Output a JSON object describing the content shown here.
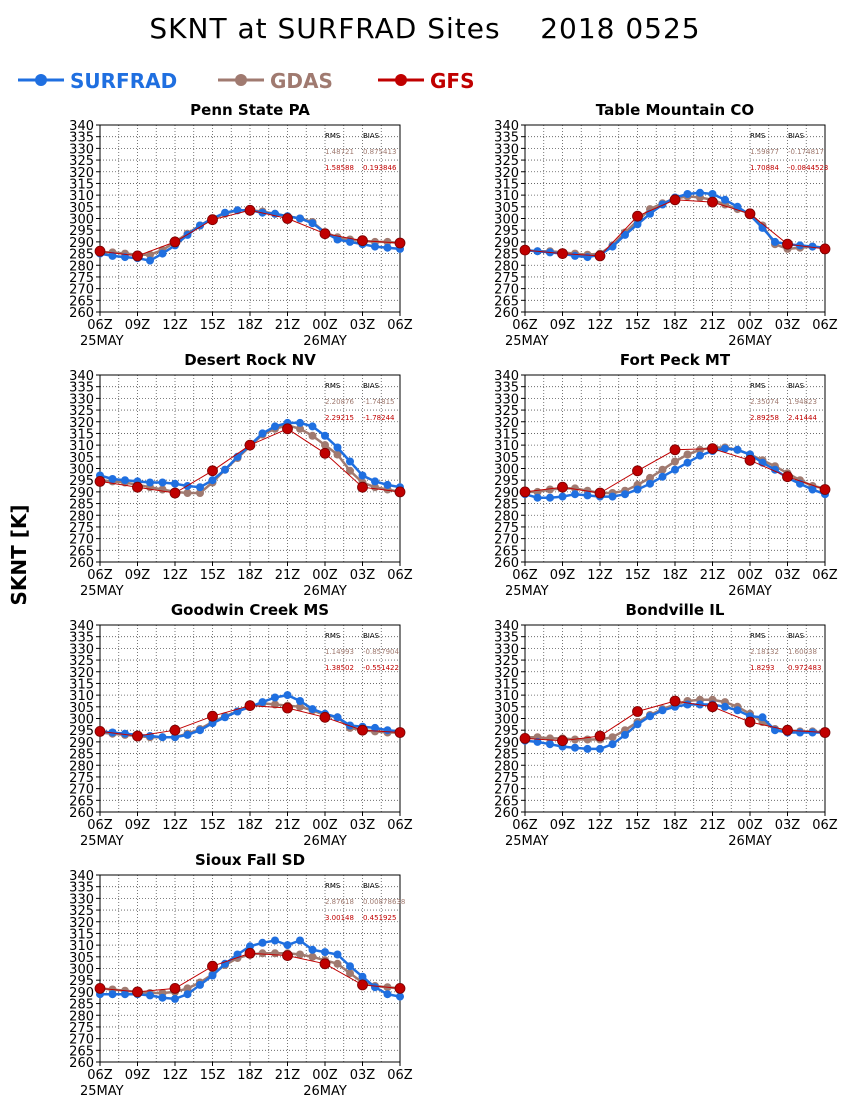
{
  "title": {
    "variable": "SKNT at SURFRAD Sites",
    "date": "2018 0525"
  },
  "colors": {
    "SURFRAD": "#1f6fe0",
    "GDAS": "#a07a70",
    "GFS": "#c00000"
  },
  "legend": [
    {
      "name": "SURFRAD",
      "color": "#1f6fe0"
    },
    {
      "name": "GDAS",
      "color": "#a07a70"
    },
    {
      "name": "GFS",
      "color": "#c00000"
    }
  ],
  "ylabel": "SKNT [K]",
  "stats_header": {
    "rms": "RMS",
    "bias": "BIAS"
  },
  "axes": {
    "ylim": [
      260,
      340
    ],
    "yticks": [
      260,
      265,
      270,
      275,
      280,
      285,
      290,
      295,
      300,
      305,
      310,
      315,
      320,
      325,
      330,
      335,
      340
    ],
    "xticks": [
      "06Z",
      "09Z",
      "12Z",
      "15Z",
      "18Z",
      "21Z",
      "00Z",
      "03Z",
      "06Z"
    ],
    "date_labels": [
      "25MAY",
      "26MAY"
    ],
    "grid": true
  },
  "chart_data": [
    {
      "type": "line",
      "title": "Penn State PA",
      "stats": {
        "GDAS": {
          "rms": "1.48721",
          "bias": "0.875413"
        },
        "GFS": {
          "rms": "1.58588",
          "bias": "0.193846"
        }
      },
      "series": [
        {
          "name": "SURFRAD",
          "values": [
            285,
            284,
            283.5,
            283,
            282,
            285,
            288.5,
            293,
            297,
            300,
            302.5,
            303.5,
            303.5,
            302.5,
            302,
            301,
            300,
            298,
            294,
            291,
            290,
            289,
            288,
            287.5,
            287
          ]
        },
        {
          "name": "GDAS",
          "values": [
            285.5,
            285.5,
            285,
            284.5,
            284.5,
            286.5,
            290,
            293.5,
            297,
            300,
            302,
            303.5,
            303.5,
            303,
            302,
            301,
            300,
            298.5,
            294,
            292,
            291,
            290.5,
            290,
            290,
            289.5
          ]
        },
        {
          "name": "GFS",
          "values": [
            286,
            null,
            null,
            284,
            null,
            null,
            290,
            null,
            null,
            299.5,
            null,
            null,
            303.5,
            null,
            null,
            300,
            null,
            null,
            293.5,
            null,
            null,
            290.5,
            null,
            null,
            289.5
          ]
        }
      ]
    },
    {
      "type": "line",
      "title": "Table Mountain CO",
      "stats": {
        "GDAS": {
          "rms": "1.59877",
          "bias": "-0.174817"
        },
        "GFS": {
          "rms": "1.70884",
          "bias": "-0.0844523"
        }
      },
      "series": [
        {
          "name": "SURFRAD",
          "values": [
            286.5,
            286,
            285.5,
            285,
            284,
            283.5,
            284.5,
            288,
            293,
            297.5,
            302,
            306,
            309,
            310.5,
            311,
            310.5,
            308,
            305,
            301.5,
            296,
            290,
            289,
            288.5,
            288,
            287.5
          ]
        },
        {
          "name": "GDAS",
          "values": [
            286.5,
            286,
            286,
            285.5,
            285,
            284.5,
            285,
            288.5,
            294,
            299,
            304,
            306.5,
            308.5,
            309.5,
            309,
            308,
            306,
            304,
            302,
            297,
            289,
            287,
            287.5,
            288,
            287.5
          ]
        },
        {
          "name": "GFS",
          "values": [
            286.5,
            null,
            null,
            285,
            null,
            null,
            284,
            null,
            null,
            301,
            null,
            null,
            308,
            null,
            null,
            307,
            null,
            null,
            302,
            null,
            null,
            289,
            null,
            null,
            287
          ]
        }
      ]
    },
    {
      "type": "line",
      "title": "Desert Rock NV",
      "stats": {
        "GDAS": {
          "rms": "2.20876",
          "bias": "-1.74815"
        },
        "GFS": {
          "rms": "2.29215",
          "bias": "-1.78244"
        }
      },
      "series": [
        {
          "name": "SURFRAD",
          "values": [
            297,
            295.5,
            295,
            294.5,
            294,
            294,
            293.5,
            292.5,
            292,
            295,
            299.5,
            305,
            310,
            315,
            318,
            319.5,
            319.5,
            318,
            314,
            309,
            303,
            297,
            294.5,
            293,
            292
          ]
        },
        {
          "name": "GDAS",
          "values": [
            295,
            294.5,
            294,
            293,
            292,
            291,
            290,
            289.5,
            289.5,
            294,
            299.5,
            304.5,
            309.5,
            314.5,
            317,
            318.5,
            317,
            314,
            310,
            306,
            299,
            294,
            292,
            291,
            290
          ]
        },
        {
          "name": "GFS",
          "values": [
            294.5,
            null,
            null,
            292,
            null,
            null,
            289.5,
            null,
            null,
            299,
            null,
            null,
            310,
            null,
            null,
            317,
            null,
            null,
            306.5,
            null,
            null,
            292,
            null,
            null,
            290
          ]
        }
      ]
    },
    {
      "type": "line",
      "title": "Fort Peck MT",
      "stats": {
        "GDAS": {
          "rms": "2.35074",
          "bias": "1.94823"
        },
        "GFS": {
          "rms": "2.89258",
          "bias": "2.41444"
        }
      },
      "series": [
        {
          "name": "SURFRAD",
          "values": [
            289,
            287.5,
            287.5,
            288,
            289,
            288.5,
            288,
            288,
            289,
            291,
            293.5,
            296.5,
            299.5,
            302.5,
            305.5,
            307.5,
            308.5,
            308,
            306,
            302.5,
            299.5,
            296,
            293.5,
            291,
            289
          ]
        },
        {
          "name": "GDAS",
          "values": [
            290,
            290,
            291,
            291.5,
            291.5,
            290.5,
            289.5,
            289.5,
            290.5,
            293,
            296,
            299.5,
            303,
            306,
            308,
            309,
            309,
            308,
            306,
            303.5,
            301,
            298,
            295,
            292.5,
            291.5
          ]
        },
        {
          "name": "GFS",
          "values": [
            290,
            null,
            null,
            292,
            null,
            null,
            289.5,
            null,
            null,
            299,
            null,
            null,
            308,
            null,
            null,
            308.5,
            null,
            null,
            303.5,
            null,
            null,
            296.5,
            null,
            null,
            291
          ]
        }
      ]
    },
    {
      "type": "line",
      "title": "Goodwin Creek MS",
      "stats": {
        "GDAS": {
          "rms": "1.14993",
          "bias": "-0.857904"
        },
        "GFS": {
          "rms": "1.38502",
          "bias": "-0.551422"
        }
      },
      "series": [
        {
          "name": "SURFRAD",
          "values": [
            294.5,
            294,
            293.5,
            293,
            292.5,
            292,
            292,
            293,
            295,
            298,
            300.5,
            303,
            305,
            307,
            309,
            310,
            307.5,
            304,
            302,
            300.5,
            297,
            296.5,
            296,
            295,
            294.5
          ]
        },
        {
          "name": "GDAS",
          "values": [
            294,
            293.5,
            293,
            292.5,
            292,
            292,
            292,
            293.5,
            295.5,
            298.5,
            301,
            303,
            305,
            306.5,
            306,
            305.5,
            305,
            303.5,
            301.5,
            300.5,
            296,
            295,
            294.5,
            294,
            294
          ]
        },
        {
          "name": "GFS",
          "values": [
            294.5,
            null,
            null,
            292.5,
            null,
            null,
            295,
            null,
            null,
            301,
            null,
            null,
            305.5,
            null,
            null,
            304.5,
            null,
            null,
            300.5,
            null,
            null,
            295,
            null,
            null,
            294
          ]
        }
      ]
    },
    {
      "type": "line",
      "title": "Bondville IL",
      "stats": {
        "GDAS": {
          "rms": "2.18132",
          "bias": "1.60038"
        },
        "GFS": {
          "rms": "1.8293",
          "bias": "0.972483"
        }
      },
      "series": [
        {
          "name": "SURFRAD",
          "values": [
            290.5,
            290,
            289,
            288,
            287.5,
            287,
            287,
            289,
            293,
            297.5,
            301,
            303.5,
            305,
            306,
            306,
            306,
            305,
            303.5,
            301,
            300.5,
            295,
            294,
            294,
            294,
            294
          ]
        },
        {
          "name": "GDAS",
          "values": [
            292,
            292,
            291.5,
            291.5,
            291,
            291,
            291,
            292,
            295,
            298.5,
            301.5,
            304,
            306,
            307.5,
            308,
            308,
            307,
            305,
            302,
            298.5,
            295.5,
            295,
            294.5,
            294.5,
            294
          ]
        },
        {
          "name": "GFS",
          "values": [
            291.5,
            null,
            null,
            290.5,
            null,
            null,
            292.5,
            null,
            null,
            303,
            null,
            null,
            307.5,
            null,
            null,
            305,
            null,
            null,
            298.5,
            null,
            null,
            295,
            null,
            null,
            294
          ]
        }
      ]
    },
    {
      "type": "line",
      "title": "Sioux Fall SD",
      "stats": {
        "GDAS": {
          "rms": "2.87618",
          "bias": "0.00878638"
        },
        "GFS": {
          "rms": "3.00148",
          "bias": "0.451925"
        }
      },
      "series": [
        {
          "name": "SURFRAD",
          "values": [
            289,
            289,
            289,
            289,
            288.5,
            287.5,
            287,
            289,
            293,
            297,
            302,
            306,
            309.5,
            311,
            312,
            310,
            312,
            308,
            307,
            306,
            301,
            296.5,
            292,
            289,
            288
          ]
        },
        {
          "name": "GDAS",
          "values": [
            291.5,
            291,
            290.5,
            290,
            289.5,
            289.5,
            290,
            291.5,
            294,
            297.5,
            301.5,
            304.5,
            306,
            306.5,
            306.5,
            306.5,
            306,
            305,
            303.5,
            302,
            298,
            294,
            292.5,
            292,
            291.5
          ]
        },
        {
          "name": "GFS",
          "values": [
            291.5,
            null,
            null,
            290,
            null,
            null,
            291.5,
            null,
            null,
            301,
            null,
            null,
            306.5,
            null,
            null,
            305.5,
            null,
            null,
            302,
            null,
            null,
            293,
            null,
            null,
            291.5
          ]
        }
      ]
    }
  ]
}
